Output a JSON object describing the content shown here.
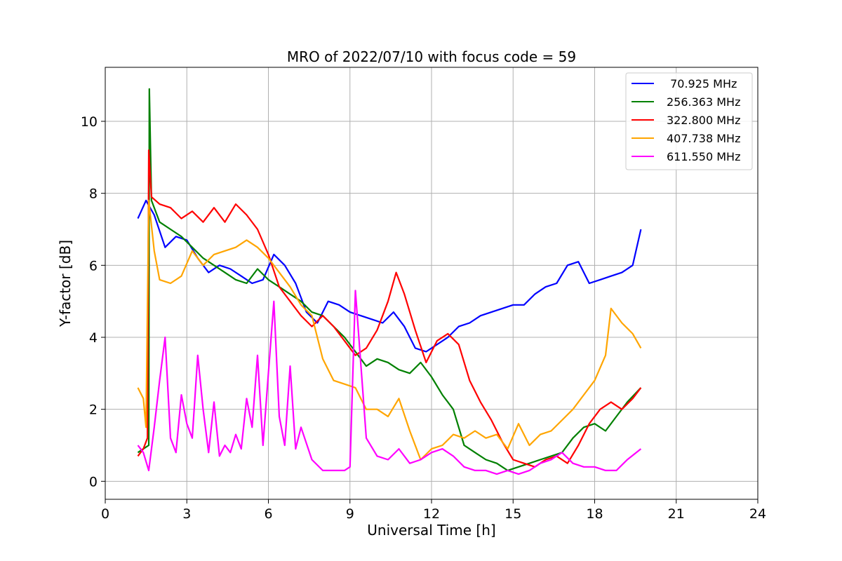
{
  "chart_data": {
    "type": "line",
    "title": "MRO of 2022/07/10 with focus code = 59",
    "xlabel": "Universal Time [h]",
    "ylabel": "Y-factor [dB]",
    "xlim": [
      0,
      24
    ],
    "ylim": [
      -0.5,
      11.5
    ],
    "x_ticks": [
      0,
      3,
      6,
      9,
      12,
      15,
      18,
      21,
      24
    ],
    "y_ticks": [
      0,
      2,
      4,
      6,
      8,
      10
    ],
    "grid": true,
    "legend_position": "top-right",
    "series": [
      {
        "name": " 70.925 MHz",
        "color": "#0000ff",
        "x": [
          1.2,
          1.5,
          1.8,
          2.2,
          2.6,
          3.0,
          3.4,
          3.8,
          4.2,
          4.6,
          5.0,
          5.4,
          5.8,
          6.2,
          6.6,
          7.0,
          7.4,
          7.8,
          8.2,
          8.6,
          9.0,
          9.4,
          9.8,
          10.2,
          10.6,
          11.0,
          11.4,
          11.8,
          12.2,
          12.6,
          13.0,
          13.4,
          13.8,
          14.2,
          14.6,
          15.0,
          15.4,
          15.8,
          16.2,
          16.6,
          17.0,
          17.4,
          17.8,
          18.2,
          18.6,
          19.0,
          19.4,
          19.7
        ],
        "y": [
          7.3,
          7.8,
          7.4,
          6.5,
          6.8,
          6.7,
          6.2,
          5.8,
          6.0,
          5.9,
          5.7,
          5.5,
          5.6,
          6.3,
          6.0,
          5.5,
          4.7,
          4.4,
          5.0,
          4.9,
          4.7,
          4.6,
          4.5,
          4.4,
          4.7,
          4.3,
          3.7,
          3.6,
          3.8,
          4.0,
          4.3,
          4.4,
          4.6,
          4.7,
          4.8,
          4.9,
          4.9,
          5.2,
          5.4,
          5.5,
          6.0,
          6.1,
          5.5,
          5.6,
          5.7,
          5.8,
          6.0,
          7.0
        ]
      },
      {
        "name": "256.363 MHz",
        "color": "#008000",
        "x": [
          1.2,
          1.4,
          1.6,
          1.62,
          1.7,
          2.0,
          2.4,
          2.8,
          3.2,
          3.6,
          4.0,
          4.4,
          4.8,
          5.2,
          5.6,
          6.0,
          6.4,
          6.8,
          7.2,
          7.6,
          8.0,
          8.4,
          8.8,
          9.2,
          9.6,
          10.0,
          10.4,
          10.8,
          11.2,
          11.6,
          12.0,
          12.4,
          12.8,
          13.2,
          13.6,
          14.0,
          14.4,
          14.8,
          15.2,
          15.6,
          16.0,
          16.4,
          16.8,
          17.2,
          17.6,
          18.0,
          18.4,
          18.8,
          19.2,
          19.7
        ],
        "y": [
          0.8,
          0.9,
          1.0,
          10.9,
          7.8,
          7.2,
          7.0,
          6.8,
          6.5,
          6.2,
          6.0,
          5.8,
          5.6,
          5.5,
          5.9,
          5.6,
          5.4,
          5.2,
          5.0,
          4.7,
          4.6,
          4.3,
          4.0,
          3.6,
          3.2,
          3.4,
          3.3,
          3.1,
          3.0,
          3.3,
          2.9,
          2.4,
          2.0,
          1.0,
          0.8,
          0.6,
          0.5,
          0.3,
          0.4,
          0.5,
          0.6,
          0.7,
          0.8,
          1.2,
          1.5,
          1.6,
          1.4,
          1.8,
          2.2,
          2.6
        ]
      },
      {
        "name": "322.800 MHz",
        "color": "#ff0000",
        "x": [
          1.2,
          1.4,
          1.55,
          1.6,
          1.7,
          2.0,
          2.4,
          2.8,
          3.2,
          3.6,
          4.0,
          4.4,
          4.8,
          5.2,
          5.6,
          6.0,
          6.4,
          6.8,
          7.2,
          7.6,
          8.0,
          8.4,
          8.8,
          9.2,
          9.6,
          10.0,
          10.4,
          10.7,
          11.0,
          11.4,
          11.8,
          12.2,
          12.6,
          13.0,
          13.4,
          13.8,
          14.2,
          14.6,
          15.0,
          15.4,
          15.8,
          16.2,
          16.6,
          17.0,
          17.4,
          17.8,
          18.2,
          18.6,
          19.0,
          19.4,
          19.7
        ],
        "y": [
          0.7,
          0.9,
          1.2,
          9.2,
          7.9,
          7.7,
          7.6,
          7.3,
          7.5,
          7.2,
          7.6,
          7.2,
          7.7,
          7.4,
          7.0,
          6.3,
          5.4,
          5.0,
          4.6,
          4.3,
          4.6,
          4.3,
          3.9,
          3.5,
          3.7,
          4.2,
          5.0,
          5.8,
          5.2,
          4.2,
          3.3,
          3.9,
          4.1,
          3.8,
          2.8,
          2.2,
          1.7,
          1.1,
          0.6,
          0.5,
          0.4,
          0.6,
          0.7,
          0.5,
          1.0,
          1.6,
          2.0,
          2.2,
          2.0,
          2.3,
          2.6
        ]
      },
      {
        "name": "407.738 MHz",
        "color": "#ffa500",
        "x": [
          1.2,
          1.4,
          1.5,
          1.6,
          1.8,
          2.0,
          2.4,
          2.8,
          3.2,
          3.6,
          4.0,
          4.4,
          4.8,
          5.2,
          5.6,
          6.0,
          6.4,
          6.8,
          7.2,
          7.6,
          8.0,
          8.4,
          8.8,
          9.2,
          9.6,
          10.0,
          10.4,
          10.8,
          11.2,
          11.6,
          12.0,
          12.4,
          12.8,
          13.2,
          13.6,
          14.0,
          14.4,
          14.8,
          15.2,
          15.6,
          16.0,
          16.4,
          16.8,
          17.2,
          17.6,
          18.0,
          18.4,
          18.6,
          19.0,
          19.4,
          19.7
        ],
        "y": [
          2.6,
          2.3,
          1.5,
          7.8,
          6.4,
          5.6,
          5.5,
          5.7,
          6.4,
          6.0,
          6.3,
          6.4,
          6.5,
          6.7,
          6.5,
          6.2,
          5.8,
          5.4,
          4.9,
          4.6,
          3.4,
          2.8,
          2.7,
          2.6,
          2.0,
          2.0,
          1.8,
          2.3,
          1.4,
          0.6,
          0.9,
          1.0,
          1.3,
          1.2,
          1.4,
          1.2,
          1.3,
          0.9,
          1.6,
          1.0,
          1.3,
          1.4,
          1.7,
          2.0,
          2.4,
          2.8,
          3.5,
          4.8,
          4.4,
          4.1,
          3.7
        ]
      },
      {
        "name": "611.550 MHz",
        "color": "#ff00ff",
        "x": [
          1.2,
          1.4,
          1.6,
          1.8,
          2.0,
          2.2,
          2.4,
          2.6,
          2.8,
          3.0,
          3.2,
          3.4,
          3.6,
          3.8,
          4.0,
          4.2,
          4.4,
          4.6,
          4.8,
          5.0,
          5.2,
          5.4,
          5.6,
          5.8,
          6.0,
          6.2,
          6.4,
          6.6,
          6.8,
          7.0,
          7.2,
          7.6,
          8.0,
          8.4,
          8.8,
          9.0,
          9.2,
          9.6,
          10.0,
          10.4,
          10.8,
          11.2,
          11.6,
          12.0,
          12.4,
          12.8,
          13.2,
          13.6,
          14.0,
          14.4,
          14.8,
          15.2,
          15.6,
          16.0,
          16.4,
          16.8,
          17.2,
          17.6,
          18.0,
          18.4,
          18.8,
          19.2,
          19.7
        ],
        "y": [
          1.0,
          0.8,
          0.3,
          1.5,
          2.8,
          4.0,
          1.2,
          0.8,
          2.4,
          1.6,
          1.2,
          3.5,
          2.0,
          0.8,
          2.2,
          0.7,
          1.0,
          0.8,
          1.3,
          0.9,
          2.3,
          1.5,
          3.5,
          1.0,
          3.0,
          5.0,
          1.8,
          1.0,
          3.2,
          0.9,
          1.5,
          0.6,
          0.3,
          0.3,
          0.3,
          0.4,
          5.3,
          1.2,
          0.7,
          0.6,
          0.9,
          0.5,
          0.6,
          0.8,
          0.9,
          0.7,
          0.4,
          0.3,
          0.3,
          0.2,
          0.3,
          0.2,
          0.3,
          0.5,
          0.6,
          0.8,
          0.5,
          0.4,
          0.4,
          0.3,
          0.3,
          0.6,
          0.9
        ]
      }
    ]
  }
}
